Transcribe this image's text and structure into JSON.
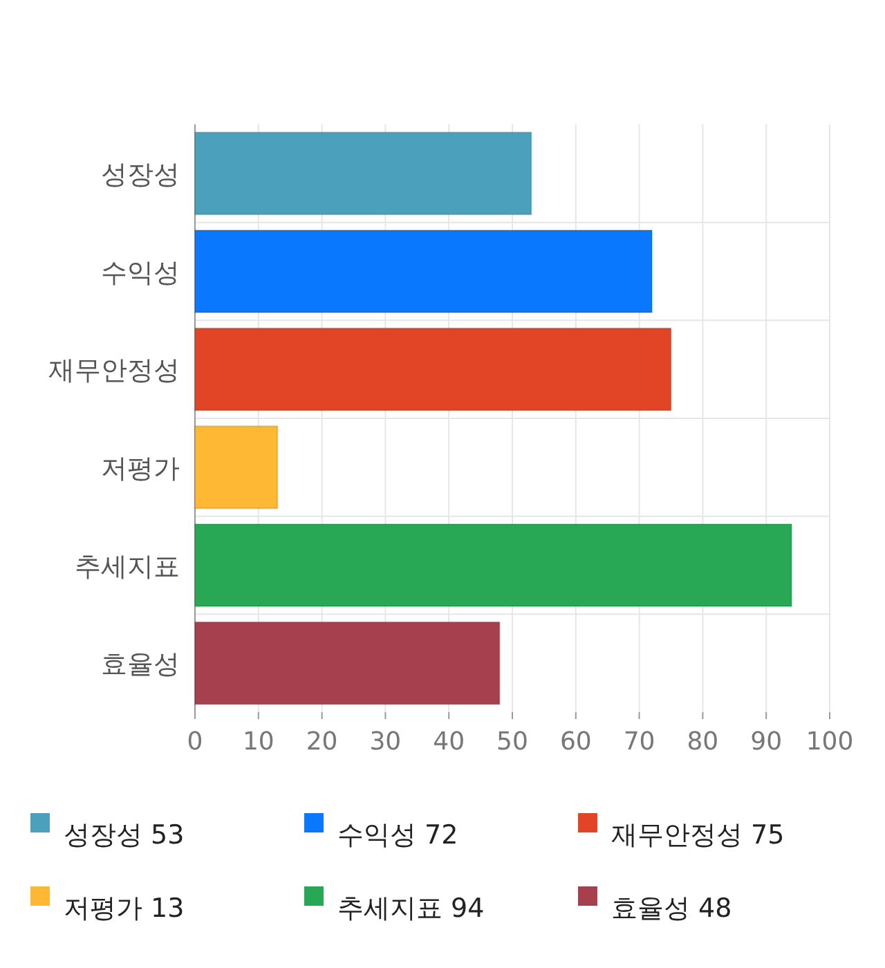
{
  "chart_data": {
    "type": "bar",
    "orientation": "horizontal",
    "categories": [
      "성장성",
      "수익성",
      "재무안정성",
      "저평가",
      "추세지표",
      "효율성"
    ],
    "series": [
      {
        "name": "성장성 53",
        "color": "#4ba1bb",
        "values": [
          53,
          null,
          null,
          null,
          null,
          null
        ]
      },
      {
        "name": "수익성 72",
        "color": "#0a77ff",
        "values": [
          null,
          72,
          null,
          null,
          null,
          null
        ]
      },
      {
        "name": "재무안정성 75",
        "color": "#e24525",
        "values": [
          null,
          null,
          75,
          null,
          null,
          null
        ]
      },
      {
        "name": "저평가 13",
        "color": "#ffb833",
        "values": [
          null,
          null,
          null,
          13,
          null,
          null
        ]
      },
      {
        "name": "추세지표 94",
        "color": "#28a755",
        "values": [
          null,
          null,
          null,
          null,
          94,
          null
        ]
      },
      {
        "name": "효율성 48",
        "color": "#a6404f",
        "values": [
          null,
          null,
          null,
          null,
          null,
          48
        ]
      }
    ],
    "xlim": [
      0,
      100
    ],
    "xticks": [
      0,
      10,
      20,
      30,
      40,
      50,
      60,
      70,
      80,
      90,
      100
    ],
    "grid": true,
    "legend": "bottom"
  }
}
